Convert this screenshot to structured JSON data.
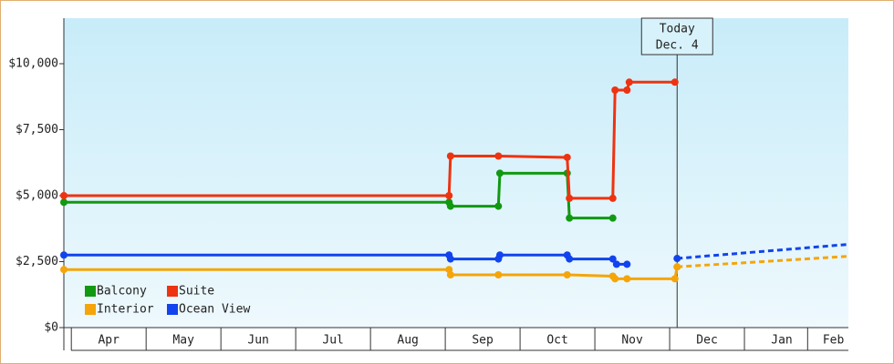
{
  "chart_data": {
    "type": "line",
    "legend": "lower left",
    "grid": false,
    "xlim": [
      -0.1,
      10.39
    ],
    "ylim": [
      0,
      11724
    ],
    "xticks": [
      {
        "value": 0.5,
        "label": "Apr"
      },
      {
        "value": 1.5,
        "label": "May"
      },
      {
        "value": 2.5,
        "label": "Jun"
      },
      {
        "value": 3.5,
        "label": "Jul"
      },
      {
        "value": 4.5,
        "label": "Aug"
      },
      {
        "value": 5.5,
        "label": "Sep"
      },
      {
        "value": 6.5,
        "label": "Oct"
      },
      {
        "value": 7.5,
        "label": "Nov"
      },
      {
        "value": 8.5,
        "label": "Dec"
      },
      {
        "value": 9.5,
        "label": "Jan"
      },
      {
        "value": 10.19,
        "label": "Feb"
      }
    ],
    "yticks": [
      {
        "value": 0,
        "label": "$0"
      },
      {
        "value": 2500,
        "label": "$2,500"
      },
      {
        "value": 5000,
        "label": "$5,000"
      },
      {
        "value": 7500,
        "label": "$7,500"
      },
      {
        "value": 10000,
        "label": "$10,000"
      }
    ],
    "annotation": {
      "x": 8.1,
      "lines": [
        "Today",
        "Dec. 4"
      ]
    },
    "series": [
      {
        "name": "Balcony",
        "color": "#119911",
        "x": [
          -0.1,
          5.05,
          5.07,
          5.71,
          5.73,
          6.63,
          6.66,
          7.24
        ],
        "values": [
          4750,
          4750,
          4600,
          4600,
          5850,
          5850,
          4150,
          4150
        ]
      },
      {
        "name": "Suite",
        "color": "#ee3311",
        "x": [
          -0.1,
          5.05,
          5.07,
          5.71,
          6.63,
          6.66,
          7.24,
          7.27,
          7.43,
          7.46,
          8.07
        ],
        "values": [
          5000,
          5000,
          6500,
          6500,
          6450,
          4900,
          4900,
          9000,
          9000,
          9300,
          9300
        ]
      },
      {
        "name": "Interior",
        "color": "#f5a50a",
        "x": [
          -0.1,
          5.05,
          5.07,
          5.71,
          6.63,
          7.24,
          7.27,
          7.43,
          8.07,
          8.1
        ],
        "values": [
          2200,
          2200,
          2000,
          2000,
          2000,
          1950,
          1850,
          1850,
          1850,
          2300
        ],
        "forecast": {
          "x": [
            8.1,
            10.37
          ],
          "values": [
            2300,
            2700
          ]
        }
      },
      {
        "name": "Ocean View",
        "color": "#1144ee",
        "x": [
          -0.1,
          5.05,
          5.07,
          5.71,
          5.73,
          6.63,
          6.66,
          7.24,
          7.29,
          7.43,
          8.1
        ],
        "values": [
          2750,
          2750,
          2600,
          2600,
          2750,
          2750,
          2600,
          2600,
          2400,
          2400,
          null
        ],
        "forecast": {
          "x": [
            8.1,
            10.37
          ],
          "values": [
            2620,
            3150
          ]
        }
      }
    ]
  }
}
